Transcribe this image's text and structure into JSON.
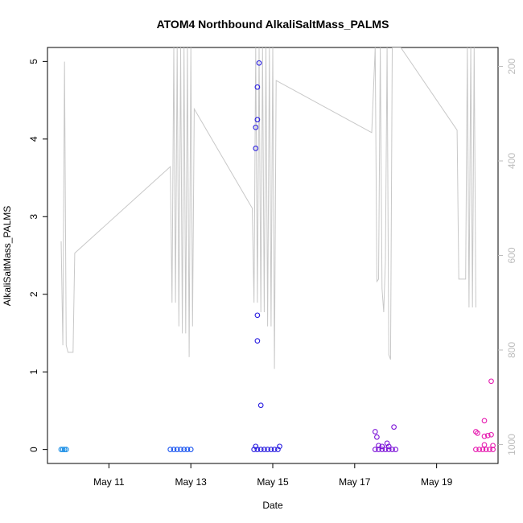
{
  "chart_data": {
    "type": "scatter",
    "title": "ATOM4 Northbound AlkaliSaltMass_PALMS",
    "xlabel": "Date",
    "ylabel": "AlkaliSaltMass_PALMS",
    "x_ticks": [
      "May 11",
      "May 13",
      "May 15",
      "May 17",
      "May 19"
    ],
    "x_range": [
      "2018-05-09T12:00",
      "2018-05-20T12:00"
    ],
    "y_range": [
      -0.18,
      5.18
    ],
    "y_ticks": [
      0,
      1,
      2,
      3,
      4,
      5
    ],
    "y2_range": [
      1040,
      160
    ],
    "y2_ticks": [
      200,
      400,
      600,
      800,
      1000
    ],
    "grid": false,
    "colors": {
      "leg1": "#1e90e6",
      "leg2": "#1a55f0",
      "leg3": "#2a1ee0",
      "leg4": "#7d14d8",
      "leg5": "#e61bb0",
      "pressure": "#c8c8c8"
    },
    "scatter_series": [
      {
        "color_key": "leg1",
        "points": [
          {
            "x": "2018-05-09T20:00",
            "y": 0
          },
          {
            "x": "2018-05-09T21:00",
            "y": 0
          },
          {
            "x": "2018-05-09T22:00",
            "y": 0
          },
          {
            "x": "2018-05-09T23:00",
            "y": 0
          }
        ]
      },
      {
        "color_key": "leg2",
        "points": [
          {
            "x": "2018-05-12T12:00",
            "y": 0
          },
          {
            "x": "2018-05-12T14:00",
            "y": 0
          },
          {
            "x": "2018-05-12T16:00",
            "y": 0
          },
          {
            "x": "2018-05-12T18:00",
            "y": 0
          },
          {
            "x": "2018-05-12T20:00",
            "y": 0
          },
          {
            "x": "2018-05-12T22:00",
            "y": 0
          },
          {
            "x": "2018-05-13T00:00",
            "y": 0
          }
        ]
      },
      {
        "color_key": "leg3",
        "points": [
          {
            "x": "2018-05-14T13:00",
            "y": 0
          },
          {
            "x": "2018-05-14T15:00",
            "y": 0
          },
          {
            "x": "2018-05-14T17:00",
            "y": 0
          },
          {
            "x": "2018-05-14T19:00",
            "y": 0
          },
          {
            "x": "2018-05-14T21:00",
            "y": 0
          },
          {
            "x": "2018-05-14T23:00",
            "y": 0
          },
          {
            "x": "2018-05-15T01:00",
            "y": 0
          },
          {
            "x": "2018-05-15T03:00",
            "y": 0
          },
          {
            "x": "2018-05-14T14:00",
            "y": 0.04
          },
          {
            "x": "2018-05-15T04:00",
            "y": 0.04
          },
          {
            "x": "2018-05-14T16:00",
            "y": 4.98
          },
          {
            "x": "2018-05-14T15:00",
            "y": 4.67
          },
          {
            "x": "2018-05-14T15:00",
            "y": 4.25
          },
          {
            "x": "2018-05-14T14:00",
            "y": 4.15
          },
          {
            "x": "2018-05-14T14:00",
            "y": 3.88
          },
          {
            "x": "2018-05-14T15:00",
            "y": 1.73
          },
          {
            "x": "2018-05-14T15:00",
            "y": 1.4
          },
          {
            "x": "2018-05-14T17:00",
            "y": 0.57
          }
        ]
      },
      {
        "color_key": "leg4",
        "points": [
          {
            "x": "2018-05-17T12:00",
            "y": 0
          },
          {
            "x": "2018-05-17T14:00",
            "y": 0
          },
          {
            "x": "2018-05-17T16:00",
            "y": 0
          },
          {
            "x": "2018-05-17T18:00",
            "y": 0
          },
          {
            "x": "2018-05-17T20:00",
            "y": 0
          },
          {
            "x": "2018-05-17T22:00",
            "y": 0
          },
          {
            "x": "2018-05-18T00:00",
            "y": 0
          },
          {
            "x": "2018-05-17T12:00",
            "y": 0.23
          },
          {
            "x": "2018-05-17T13:00",
            "y": 0.16
          },
          {
            "x": "2018-05-17T14:00",
            "y": 0.05
          },
          {
            "x": "2018-05-17T16:00",
            "y": 0.04
          },
          {
            "x": "2018-05-17T19:00",
            "y": 0.08
          },
          {
            "x": "2018-05-17T20:00",
            "y": 0.04
          },
          {
            "x": "2018-05-17T23:00",
            "y": 0.29
          }
        ]
      },
      {
        "color_key": "leg5",
        "points": [
          {
            "x": "2018-05-19T23:00",
            "y": 0
          },
          {
            "x": "2018-05-20T01:00",
            "y": 0
          },
          {
            "x": "2018-05-20T03:00",
            "y": 0
          },
          {
            "x": "2018-05-20T05:00",
            "y": 0
          },
          {
            "x": "2018-05-20T07:00",
            "y": 0
          },
          {
            "x": "2018-05-20T09:00",
            "y": 0
          },
          {
            "x": "2018-05-19T23:00",
            "y": 0.23
          },
          {
            "x": "2018-05-20T00:00",
            "y": 0.21
          },
          {
            "x": "2018-05-20T04:00",
            "y": 0.37
          },
          {
            "x": "2018-05-20T04:00",
            "y": 0.17
          },
          {
            "x": "2018-05-20T06:00",
            "y": 0.18
          },
          {
            "x": "2018-05-20T08:00",
            "y": 0.19
          },
          {
            "x": "2018-05-20T08:00",
            "y": 0.88
          },
          {
            "x": "2018-05-20T04:00",
            "y": 0.06
          },
          {
            "x": "2018-05-20T09:00",
            "y": 0.05
          }
        ]
      }
    ],
    "pressure_line": [
      {
        "x": "2018-05-09T20:00",
        "y2": 570
      },
      {
        "x": "2018-05-09T21:00",
        "y2": 790
      },
      {
        "x": "2018-05-09T22:00",
        "y2": 190
      },
      {
        "x": "2018-05-09T23:00",
        "y2": 790
      },
      {
        "x": "2018-05-10T00:00",
        "y2": 805
      },
      {
        "x": "2018-05-10T03:00",
        "y2": 805
      },
      {
        "x": "2018-05-10T04:00",
        "y2": 595
      },
      {
        "x": "2018-05-12T12:00",
        "y2": 412
      },
      {
        "x": "2018-05-12T13:00",
        "y2": 700
      },
      {
        "x": "2018-05-12T14:00",
        "y2": 160
      },
      {
        "x": "2018-05-12T15:00",
        "y2": 700
      },
      {
        "x": "2018-05-12T16:00",
        "y2": 160
      },
      {
        "x": "2018-05-12T17:00",
        "y2": 750
      },
      {
        "x": "2018-05-12T18:00",
        "y2": 160
      },
      {
        "x": "2018-05-12T19:00",
        "y2": 765
      },
      {
        "x": "2018-05-12T20:00",
        "y2": 160
      },
      {
        "x": "2018-05-12T21:00",
        "y2": 765
      },
      {
        "x": "2018-05-12T22:00",
        "y2": 160
      },
      {
        "x": "2018-05-12T23:00",
        "y2": 815
      },
      {
        "x": "2018-05-13T00:00",
        "y2": 160
      },
      {
        "x": "2018-05-13T01:00",
        "y2": 750
      },
      {
        "x": "2018-05-13T02:00",
        "y2": 290
      },
      {
        "x": "2018-05-14T12:00",
        "y2": 500
      },
      {
        "x": "2018-05-14T13:00",
        "y2": 700
      },
      {
        "x": "2018-05-14T14:00",
        "y2": 160
      },
      {
        "x": "2018-05-14T15:00",
        "y2": 700
      },
      {
        "x": "2018-05-14T16:00",
        "y2": 160
      },
      {
        "x": "2018-05-14T17:00",
        "y2": 720
      },
      {
        "x": "2018-05-14T18:00",
        "y2": 160
      },
      {
        "x": "2018-05-14T19:00",
        "y2": 720
      },
      {
        "x": "2018-05-14T20:00",
        "y2": 160
      },
      {
        "x": "2018-05-14T21:00",
        "y2": 750
      },
      {
        "x": "2018-05-14T22:00",
        "y2": 160
      },
      {
        "x": "2018-05-14T23:00",
        "y2": 750
      },
      {
        "x": "2018-05-15T00:00",
        "y2": 160
      },
      {
        "x": "2018-05-15T01:00",
        "y2": 840
      },
      {
        "x": "2018-05-15T02:00",
        "y2": 230
      },
      {
        "x": "2018-05-17T10:00",
        "y2": 340
      },
      {
        "x": "2018-05-17T12:00",
        "y2": 160
      },
      {
        "x": "2018-05-17T13:00",
        "y2": 655
      },
      {
        "x": "2018-05-17T14:00",
        "y2": 650
      },
      {
        "x": "2018-05-17T15:00",
        "y2": 160
      },
      {
        "x": "2018-05-17T16:00",
        "y2": 670
      },
      {
        "x": "2018-05-17T17:00",
        "y2": 720
      },
      {
        "x": "2018-05-17T18:00",
        "y2": 610
      },
      {
        "x": "2018-05-17T19:00",
        "y2": 160
      },
      {
        "x": "2018-05-17T20:00",
        "y2": 810
      },
      {
        "x": "2018-05-17T21:00",
        "y2": 820
      },
      {
        "x": "2018-05-17T22:00",
        "y2": 160
      },
      {
        "x": "2018-05-18T03:00",
        "y2": 160
      },
      {
        "x": "2018-05-19T12:00",
        "y2": 335
      },
      {
        "x": "2018-05-19T13:00",
        "y2": 650
      },
      {
        "x": "2018-05-19T17:00",
        "y2": 650
      },
      {
        "x": "2018-05-19T18:00",
        "y2": 160
      },
      {
        "x": "2018-05-19T19:00",
        "y2": 710
      },
      {
        "x": "2018-05-19T20:00",
        "y2": 160
      },
      {
        "x": "2018-05-19T21:00",
        "y2": 710
      },
      {
        "x": "2018-05-19T22:00",
        "y2": 160
      },
      {
        "x": "2018-05-19T23:00",
        "y2": 710
      }
    ]
  }
}
